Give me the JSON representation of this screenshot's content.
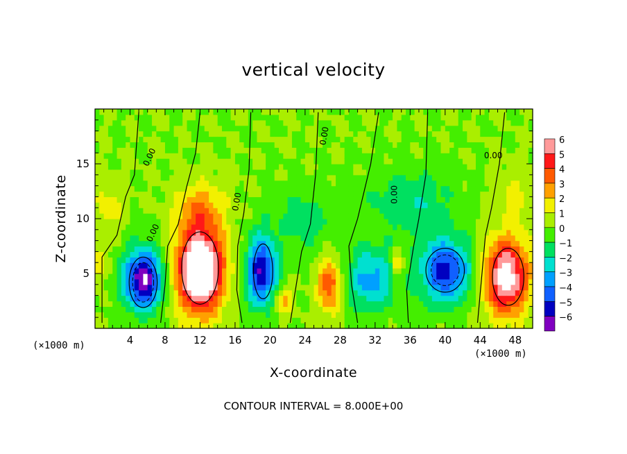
{
  "chart_data": {
    "type": "heatmap",
    "title": "vertical velocity",
    "xlabel": "X-coordinate",
    "ylabel": "Z-coordinate",
    "x_unit_label": "(×1000 m)",
    "xlim": [
      0,
      50
    ],
    "ylim": [
      0,
      20
    ],
    "x_ticks": [
      4,
      8,
      12,
      16,
      20,
      24,
      28,
      32,
      36,
      40,
      44,
      48
    ],
    "y_ticks": [
      5,
      10,
      15
    ],
    "colorbar": {
      "ticks": [
        6,
        5,
        4,
        3,
        2,
        1,
        0,
        -1,
        -2,
        -3,
        -4,
        -5,
        -6
      ],
      "tick_labels": [
        "6",
        "5",
        "4",
        "3",
        "2",
        "1",
        "0",
        "−1",
        "−2",
        "−3",
        "−4",
        "−5",
        "−6"
      ],
      "range": [
        -6,
        6
      ],
      "colors": [
        "#ff9a9a",
        "#ff1818",
        "#ff5a00",
        "#ffa000",
        "#f2f000",
        "#aaee00",
        "#44ee00",
        "#00e060",
        "#00e0d0",
        "#00a0ff",
        "#1060ff",
        "#0000c0",
        "#8000c0"
      ]
    },
    "contour_label": "0.00",
    "contour_interval_text": "CONTOUR INTERVAL = 8.000E+00",
    "features": [
      {
        "x": 5.5,
        "z": 4.5,
        "w": -7,
        "rx": 2.3,
        "rz": 2.9
      },
      {
        "x": 12.0,
        "z": 5.3,
        "w": 9,
        "rx": 2.8,
        "rz": 4.0
      },
      {
        "x": 19.0,
        "z": 5.2,
        "w": -6,
        "rx": 1.8,
        "rz": 3.3
      },
      {
        "x": 26.8,
        "z": 4.0,
        "w": 4,
        "rx": 1.4,
        "rz": 2.6
      },
      {
        "x": 21.5,
        "z": 2.6,
        "w": 2.5,
        "rx": 1.1,
        "rz": 1.3
      },
      {
        "x": 34.5,
        "z": 6.0,
        "w": 2.5,
        "rx": 0.7,
        "rz": 1.5
      },
      {
        "x": 31.5,
        "z": 4.5,
        "w": -3.5,
        "rx": 3.0,
        "rz": 3.0
      },
      {
        "x": 40.0,
        "z": 5.3,
        "w": -5.5,
        "rx": 3.0,
        "rz": 3.0
      },
      {
        "x": 47.0,
        "z": 4.7,
        "w": 7,
        "rx": 2.6,
        "rz": 3.6
      },
      {
        "x": 12.0,
        "z": 11.0,
        "w": 2.5,
        "rx": 3.0,
        "rz": 2.5
      },
      {
        "x": 36.0,
        "z": 11.5,
        "w": -2,
        "rx": 5.0,
        "rz": 3.0
      },
      {
        "x": 24.0,
        "z": 10.0,
        "w": -1.5,
        "rx": 4.0,
        "rz": 3.0
      },
      {
        "x": 1.5,
        "z": 11.0,
        "w": 1.5,
        "rx": 1.8,
        "rz": 2.5
      },
      {
        "x": 48.0,
        "z": 12.0,
        "w": 1.2,
        "rx": 2.0,
        "rz": 3.0
      },
      {
        "x": 0.5,
        "z": 6.0,
        "w": 2,
        "rx": 0.8,
        "rz": 1.5
      }
    ]
  }
}
